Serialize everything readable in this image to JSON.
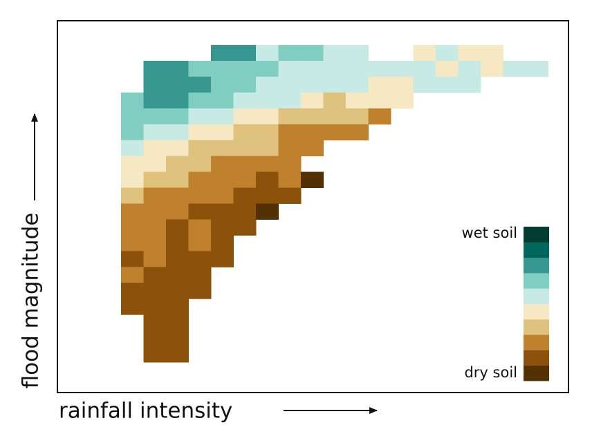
{
  "chart_data": {
    "type": "heatmap",
    "x_label": "rainfall intensity",
    "y_label": "flood magnitude",
    "legend_top_label": "wet soil",
    "legend_bottom_label": "dry soil",
    "colors": [
      "#543005",
      "#8c510a",
      "#bf812d",
      "#dfc27d",
      "#f6e8c3",
      "#c7eae5",
      "#80cdc1",
      "#35978f",
      "#01665e",
      "#003c30"
    ],
    "z": [
      [
        null,
        null,
        null,
        null,
        8,
        8,
        6,
        7,
        7,
        6,
        6,
        null,
        null,
        5,
        6,
        5,
        5
      ],
      [
        null,
        8,
        8,
        7,
        7,
        7,
        7,
        6,
        6,
        6,
        6,
        6,
        6,
        6,
        5,
        6,
        5,
        6,
        6
      ],
      [
        null,
        8,
        8,
        8,
        7,
        7,
        6,
        6,
        6,
        6,
        6,
        5,
        5,
        6,
        6,
        6
      ],
      [
        7,
        8,
        8,
        7,
        7,
        6,
        6,
        6,
        5,
        4,
        5,
        5,
        5
      ],
      [
        7,
        7,
        7,
        6,
        6,
        5,
        5,
        4,
        4,
        4,
        4,
        3
      ],
      [
        7,
        6,
        6,
        5,
        5,
        4,
        4,
        3,
        3,
        3,
        3
      ],
      [
        6,
        5,
        5,
        4,
        4,
        4,
        4,
        3,
        3
      ],
      [
        5,
        5,
        4,
        4,
        3,
        3,
        3,
        3
      ],
      [
        5,
        4,
        4,
        3,
        3,
        3,
        2,
        3,
        1
      ],
      [
        4,
        3,
        3,
        3,
        3,
        2,
        2,
        2
      ],
      [
        3,
        3,
        3,
        2,
        2,
        2,
        1
      ],
      [
        3,
        3,
        2,
        3,
        2,
        2
      ],
      [
        3,
        3,
        2,
        3,
        2
      ],
      [
        2,
        3,
        2,
        2,
        2
      ],
      [
        3,
        2,
        2,
        2
      ],
      [
        2,
        2,
        2,
        2
      ],
      [
        2,
        2,
        2
      ],
      [
        null,
        2,
        2
      ],
      [
        null,
        2,
        2
      ],
      [
        null,
        2,
        2
      ]
    ]
  }
}
